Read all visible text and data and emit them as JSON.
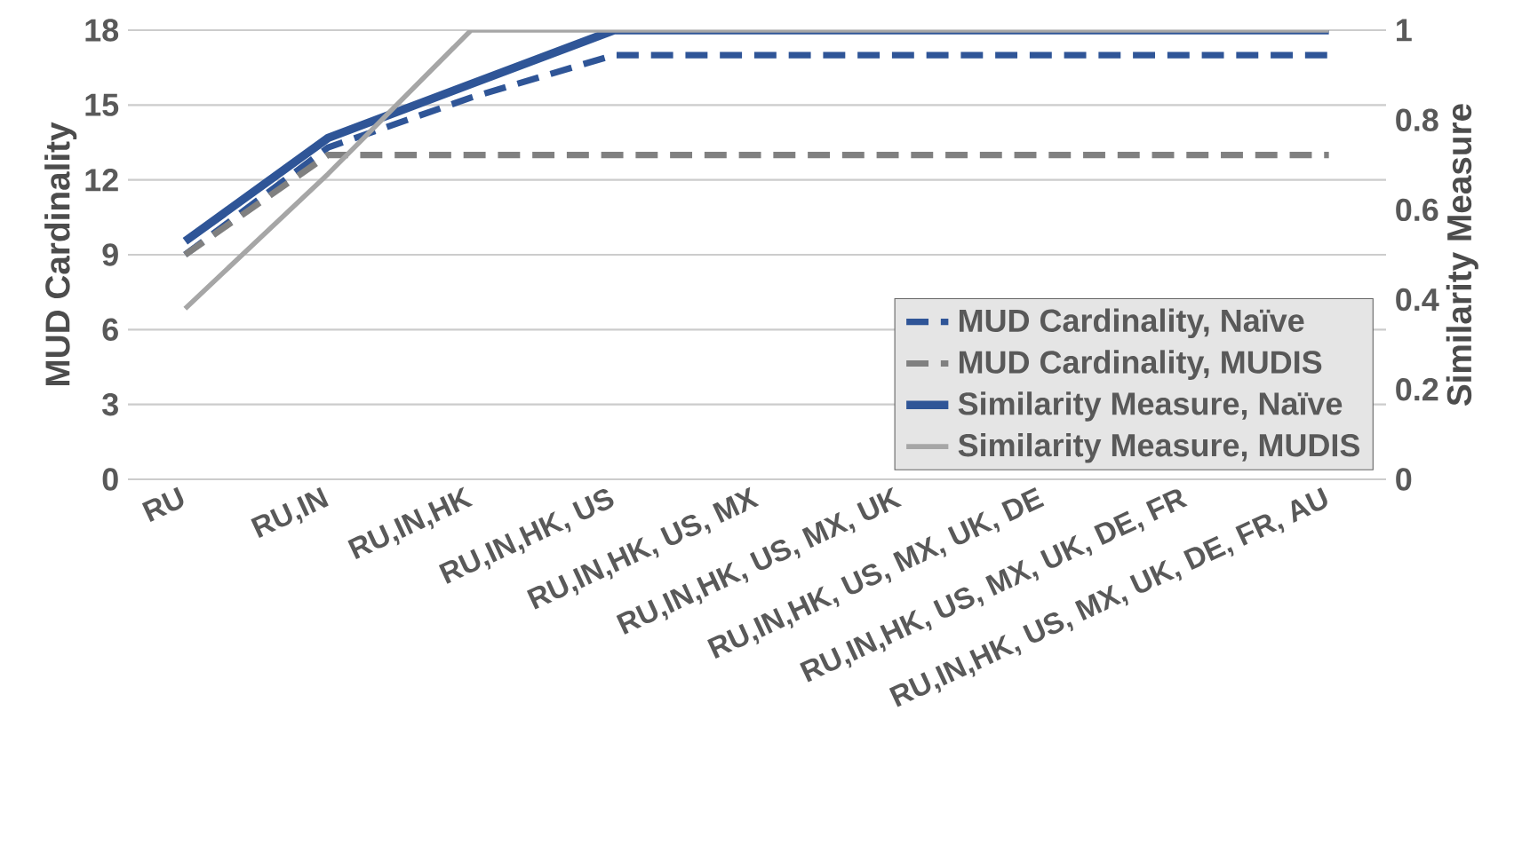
{
  "chart_data": {
    "type": "line",
    "ylabel": "MUD Cardinality",
    "y2label": "Similarity Measure",
    "categories": [
      "RU",
      "RU,IN",
      "RU,IN,HK",
      "RU,IN,HK, US",
      "RU,IN,HK, US, MX",
      "RU,IN,HK, US, MX, UK",
      "RU,IN,HK, US, MX, UK, DE",
      "RU,IN,HK, US, MX, UK, DE, FR",
      "RU,IN,HK, US, MX, UK, DE, FR, AU"
    ],
    "series": [
      {
        "name": "MUD Cardinality, Naïve",
        "color": "#2f5597",
        "line_style": "dashed",
        "values": [
          9,
          13.3,
          15.3,
          17,
          17,
          17,
          17,
          17,
          17
        ]
      },
      {
        "name": "MUD Cardinality, MUDIS",
        "color": "#808080",
        "line_style": "dashed",
        "values": [
          9,
          13,
          13,
          13,
          13,
          13,
          13,
          13,
          13
        ]
      },
      {
        "name": "Similarity Measure, Naïve",
        "color": "#2f5597",
        "line_style": "solid",
        "axis": "y2",
        "values": [
          0.53,
          0.76,
          0.88,
          1,
          1,
          1,
          1,
          1,
          1
        ]
      },
      {
        "name": "Similarity Measure, MUDIS",
        "color": "#a6a6a6",
        "line_style": "solid",
        "axis": "y2",
        "values": [
          0.38,
          0.68,
          1,
          1,
          1,
          1,
          1,
          1,
          1
        ]
      }
    ],
    "ylim": [
      0,
      18
    ],
    "yticks": [
      0,
      3,
      6,
      9,
      12,
      15,
      18
    ],
    "y2lim": [
      0,
      1
    ],
    "y2ticks": [
      0,
      0.2,
      0.4,
      0.6,
      0.8,
      1
    ],
    "grid": "y",
    "legend": "bottom right",
    "marker": "none"
  }
}
